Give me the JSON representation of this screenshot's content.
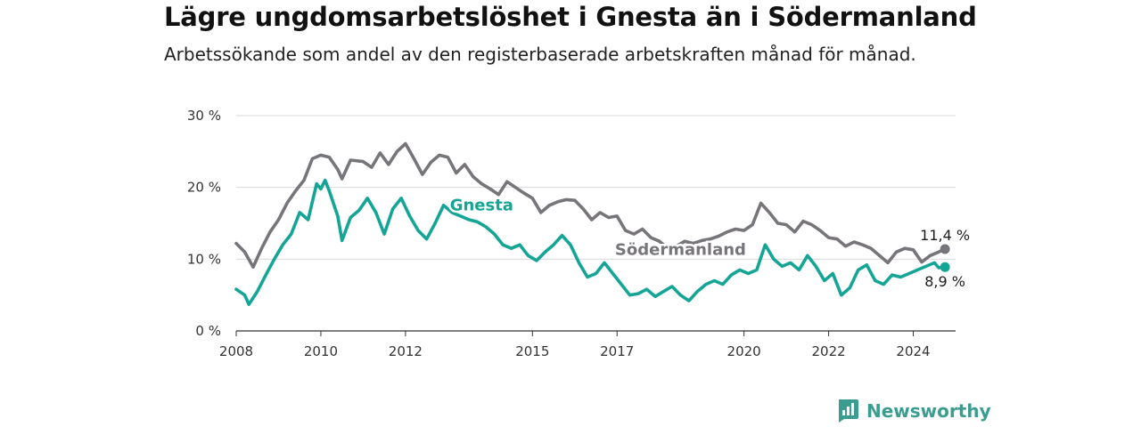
{
  "title": "Lägre ungdomsarbetslöshet i Gnesta än i Södermanland",
  "subtitle": "Arbetssökande som andel av den registerbaserade arbetskraften månad för månad.",
  "brand": {
    "name": "Newsworthy",
    "color": "#3a9d8f"
  },
  "chart_data": {
    "type": "line",
    "title": "Lägre ungdomsarbetslöshet i Gnesta än i Södermanland",
    "subtitle": "Arbetssökande som andel av den registerbaserade arbetskraften månad för månad.",
    "xlabel": "",
    "ylabel": "",
    "xlim": [
      2008,
      2025
    ],
    "ylim": [
      0,
      30
    ],
    "yticks": [
      0,
      10,
      20,
      30
    ],
    "ytick_labels": [
      "0 %",
      "10 %",
      "20 %",
      "30 %"
    ],
    "xticks": [
      2008,
      2010,
      2012,
      2015,
      2017,
      2020,
      2022,
      2024
    ],
    "xtick_labels": [
      "2008",
      "2010",
      "2012",
      "2015",
      "2017",
      "2020",
      "2022",
      "2024"
    ],
    "grid": true,
    "legend": "inline labels",
    "series": [
      {
        "name": "Södermanland",
        "color": "#77757a",
        "end_label": "11,4 %",
        "points": [
          [
            2008.0,
            12.2
          ],
          [
            2008.2,
            11.0
          ],
          [
            2008.4,
            8.9
          ],
          [
            2008.6,
            11.5
          ],
          [
            2008.8,
            13.8
          ],
          [
            2009.0,
            15.5
          ],
          [
            2009.2,
            17.8
          ],
          [
            2009.4,
            19.5
          ],
          [
            2009.6,
            21.0
          ],
          [
            2009.8,
            24.0
          ],
          [
            2010.0,
            24.5
          ],
          [
            2010.2,
            24.2
          ],
          [
            2010.4,
            22.5
          ],
          [
            2010.5,
            21.2
          ],
          [
            2010.7,
            23.8
          ],
          [
            2011.0,
            23.6
          ],
          [
            2011.2,
            22.8
          ],
          [
            2011.4,
            24.8
          ],
          [
            2011.6,
            23.2
          ],
          [
            2011.8,
            25.0
          ],
          [
            2012.0,
            26.1
          ],
          [
            2012.2,
            24.0
          ],
          [
            2012.4,
            21.8
          ],
          [
            2012.6,
            23.5
          ],
          [
            2012.8,
            24.5
          ],
          [
            2013.0,
            24.2
          ],
          [
            2013.2,
            22.0
          ],
          [
            2013.4,
            23.2
          ],
          [
            2013.6,
            21.5
          ],
          [
            2013.8,
            20.5
          ],
          [
            2014.0,
            19.8
          ],
          [
            2014.2,
            19.0
          ],
          [
            2014.4,
            20.8
          ],
          [
            2014.6,
            20.0
          ],
          [
            2014.8,
            19.2
          ],
          [
            2015.0,
            18.5
          ],
          [
            2015.2,
            16.5
          ],
          [
            2015.4,
            17.5
          ],
          [
            2015.6,
            18.0
          ],
          [
            2015.8,
            18.3
          ],
          [
            2016.0,
            18.2
          ],
          [
            2016.2,
            17.0
          ],
          [
            2016.4,
            15.5
          ],
          [
            2016.6,
            16.5
          ],
          [
            2016.8,
            15.8
          ],
          [
            2017.0,
            16.0
          ],
          [
            2017.2,
            14.0
          ],
          [
            2017.4,
            13.5
          ],
          [
            2017.6,
            14.2
          ],
          [
            2017.8,
            13.0
          ],
          [
            2018.0,
            12.5
          ],
          [
            2018.2,
            11.5
          ],
          [
            2018.4,
            11.8
          ],
          [
            2018.6,
            12.5
          ],
          [
            2018.8,
            12.2
          ],
          [
            2019.0,
            12.6
          ],
          [
            2019.2,
            12.8
          ],
          [
            2019.4,
            13.2
          ],
          [
            2019.6,
            13.8
          ],
          [
            2019.8,
            14.2
          ],
          [
            2020.0,
            14.0
          ],
          [
            2020.2,
            14.8
          ],
          [
            2020.4,
            17.8
          ],
          [
            2020.6,
            16.5
          ],
          [
            2020.8,
            15.0
          ],
          [
            2021.0,
            14.8
          ],
          [
            2021.2,
            13.8
          ],
          [
            2021.4,
            15.3
          ],
          [
            2021.6,
            14.8
          ],
          [
            2021.8,
            14.0
          ],
          [
            2022.0,
            13.0
          ],
          [
            2022.2,
            12.8
          ],
          [
            2022.4,
            11.8
          ],
          [
            2022.6,
            12.4
          ],
          [
            2022.8,
            12.0
          ],
          [
            2023.0,
            11.5
          ],
          [
            2023.2,
            10.5
          ],
          [
            2023.4,
            9.5
          ],
          [
            2023.6,
            11.0
          ],
          [
            2023.8,
            11.5
          ],
          [
            2024.0,
            11.3
          ],
          [
            2024.2,
            9.6
          ],
          [
            2024.4,
            10.5
          ],
          [
            2024.6,
            11.0
          ],
          [
            2024.75,
            11.4
          ]
        ]
      },
      {
        "name": "Gnesta",
        "color": "#14a596",
        "end_label": "8,9 %",
        "points": [
          [
            2008.0,
            5.8
          ],
          [
            2008.2,
            5.0
          ],
          [
            2008.3,
            3.7
          ],
          [
            2008.5,
            5.5
          ],
          [
            2008.7,
            7.8
          ],
          [
            2008.9,
            10.0
          ],
          [
            2009.1,
            12.0
          ],
          [
            2009.3,
            13.5
          ],
          [
            2009.5,
            16.5
          ],
          [
            2009.7,
            15.5
          ],
          [
            2009.8,
            18.0
          ],
          [
            2009.9,
            20.5
          ],
          [
            2010.0,
            19.8
          ],
          [
            2010.1,
            21.0
          ],
          [
            2010.2,
            19.5
          ],
          [
            2010.4,
            16.0
          ],
          [
            2010.5,
            12.6
          ],
          [
            2010.7,
            15.8
          ],
          [
            2010.9,
            16.8
          ],
          [
            2011.1,
            18.5
          ],
          [
            2011.3,
            16.5
          ],
          [
            2011.5,
            13.5
          ],
          [
            2011.7,
            17.0
          ],
          [
            2011.9,
            18.5
          ],
          [
            2012.1,
            16.0
          ],
          [
            2012.3,
            14.0
          ],
          [
            2012.5,
            12.8
          ],
          [
            2012.7,
            15.0
          ],
          [
            2012.9,
            17.5
          ],
          [
            2013.1,
            16.5
          ],
          [
            2013.3,
            16.0
          ],
          [
            2013.5,
            15.5
          ],
          [
            2013.7,
            15.2
          ],
          [
            2013.9,
            14.5
          ],
          [
            2014.1,
            13.5
          ],
          [
            2014.3,
            12.0
          ],
          [
            2014.5,
            11.5
          ],
          [
            2014.7,
            12.0
          ],
          [
            2014.9,
            10.5
          ],
          [
            2015.1,
            9.8
          ],
          [
            2015.3,
            11.0
          ],
          [
            2015.5,
            12.0
          ],
          [
            2015.7,
            13.3
          ],
          [
            2015.9,
            12.0
          ],
          [
            2016.1,
            9.5
          ],
          [
            2016.3,
            7.5
          ],
          [
            2016.5,
            8.0
          ],
          [
            2016.7,
            9.5
          ],
          [
            2016.9,
            8.0
          ],
          [
            2017.1,
            6.5
          ],
          [
            2017.3,
            5.0
          ],
          [
            2017.5,
            5.2
          ],
          [
            2017.7,
            5.8
          ],
          [
            2017.9,
            4.8
          ],
          [
            2018.1,
            5.5
          ],
          [
            2018.3,
            6.2
          ],
          [
            2018.5,
            5.0
          ],
          [
            2018.7,
            4.2
          ],
          [
            2018.9,
            5.5
          ],
          [
            2019.1,
            6.5
          ],
          [
            2019.3,
            7.0
          ],
          [
            2019.5,
            6.5
          ],
          [
            2019.7,
            7.8
          ],
          [
            2019.9,
            8.5
          ],
          [
            2020.1,
            8.0
          ],
          [
            2020.3,
            8.5
          ],
          [
            2020.5,
            12.0
          ],
          [
            2020.7,
            10.0
          ],
          [
            2020.9,
            9.0
          ],
          [
            2021.1,
            9.5
          ],
          [
            2021.3,
            8.5
          ],
          [
            2021.5,
            10.5
          ],
          [
            2021.7,
            9.0
          ],
          [
            2021.9,
            7.0
          ],
          [
            2022.1,
            8.0
          ],
          [
            2022.3,
            5.0
          ],
          [
            2022.5,
            6.0
          ],
          [
            2022.7,
            8.5
          ],
          [
            2022.9,
            9.2
          ],
          [
            2023.1,
            7.0
          ],
          [
            2023.3,
            6.5
          ],
          [
            2023.5,
            7.8
          ],
          [
            2023.7,
            7.5
          ],
          [
            2023.9,
            8.0
          ],
          [
            2024.1,
            8.5
          ],
          [
            2024.3,
            9.0
          ],
          [
            2024.5,
            9.5
          ],
          [
            2024.6,
            8.8
          ],
          [
            2024.75,
            8.9
          ]
        ]
      }
    ]
  }
}
